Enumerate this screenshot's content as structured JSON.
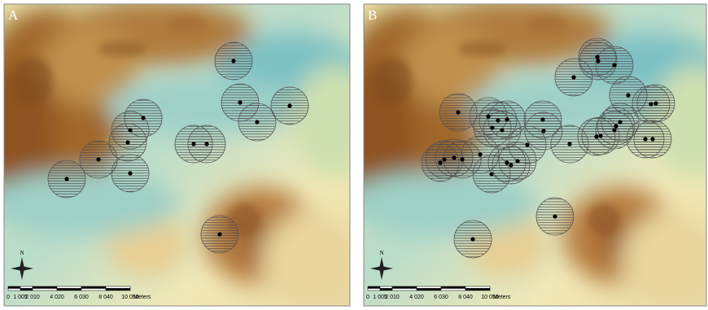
{
  "panels": [
    {
      "label": "A",
      "north": "N",
      "scale_labels": [
        "0",
        "1 005",
        "2 010",
        "4 020",
        "6 030",
        "8 040",
        "10 050"
      ],
      "unit": "Meters"
    },
    {
      "label": "B",
      "north": "N",
      "scale_labels": [
        "0",
        "1 005",
        "2 010",
        "4 020",
        "6 030",
        "8 040",
        "10 050"
      ],
      "unit": "Meters"
    }
  ]
}
